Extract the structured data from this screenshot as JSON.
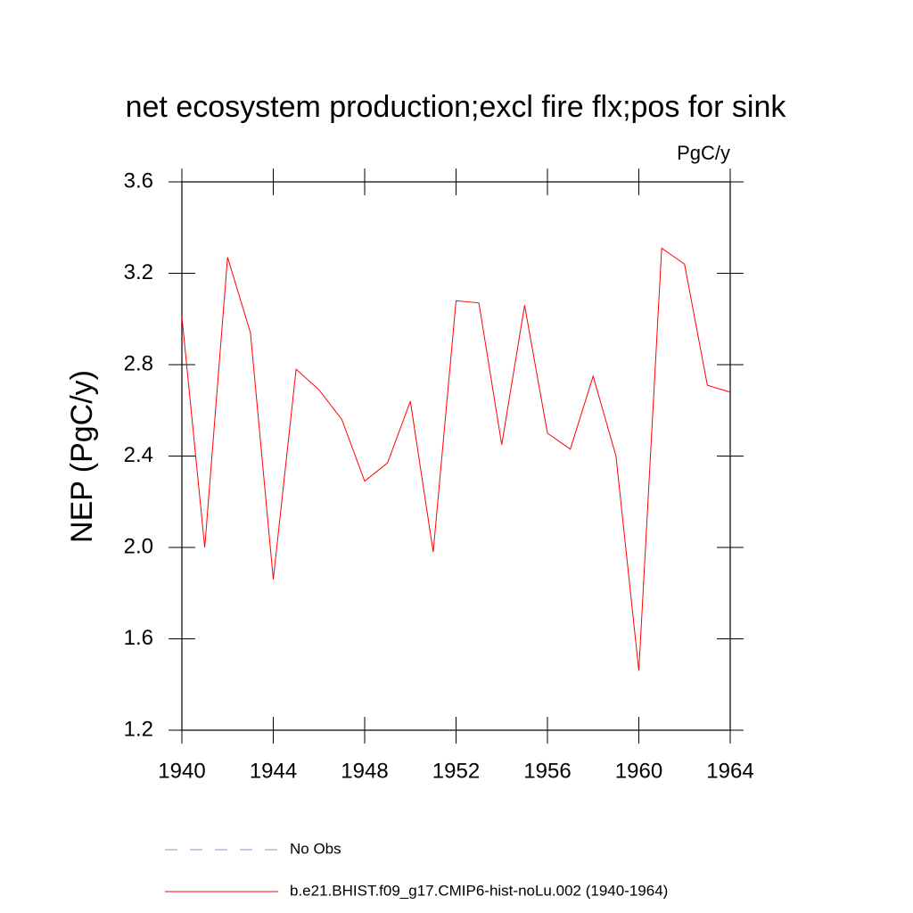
{
  "chart_data": {
    "type": "line",
    "title": "net ecosystem production;excl fire flx;pos for sink",
    "units": "PgC/y",
    "y_label": "NEP  (PgC/y)",
    "x": [
      1940,
      1941,
      1942,
      1943,
      1944,
      1945,
      1946,
      1947,
      1948,
      1949,
      1950,
      1951,
      1952,
      1953,
      1954,
      1955,
      1956,
      1957,
      1958,
      1959,
      1960,
      1961,
      1962,
      1963,
      1964
    ],
    "series": [
      {
        "name": "No Obs",
        "color": "#8c8cd0",
        "dashed": true,
        "values": [
          null,
          null,
          null,
          null,
          null,
          null,
          null,
          null,
          null,
          null,
          null,
          null,
          null,
          null,
          null,
          null,
          null,
          null,
          null,
          null,
          null,
          null,
          null,
          null,
          null
        ]
      },
      {
        "name": "b.e21.BHIST.f09_g17.CMIP6-hist-noLu.002 (1940-1964)",
        "color": "#ff0000",
        "dashed": false,
        "values": [
          3.01,
          2.0,
          3.27,
          2.94,
          1.86,
          2.78,
          2.69,
          2.56,
          2.29,
          2.37,
          2.64,
          1.98,
          3.08,
          3.07,
          2.45,
          3.06,
          2.5,
          2.43,
          2.75,
          2.4,
          1.46,
          3.31,
          3.24,
          2.71,
          2.68
        ]
      }
    ],
    "xlim": [
      1940,
      1964
    ],
    "xticks": [
      1940,
      1944,
      1948,
      1952,
      1956,
      1960,
      1964
    ],
    "ylim": [
      1.2,
      3.6
    ],
    "yticks": [
      1.2,
      1.6,
      {
        "value": 2,
        "label": "2.0"
      },
      2.4,
      2.8,
      3.2,
      3.6
    ]
  }
}
